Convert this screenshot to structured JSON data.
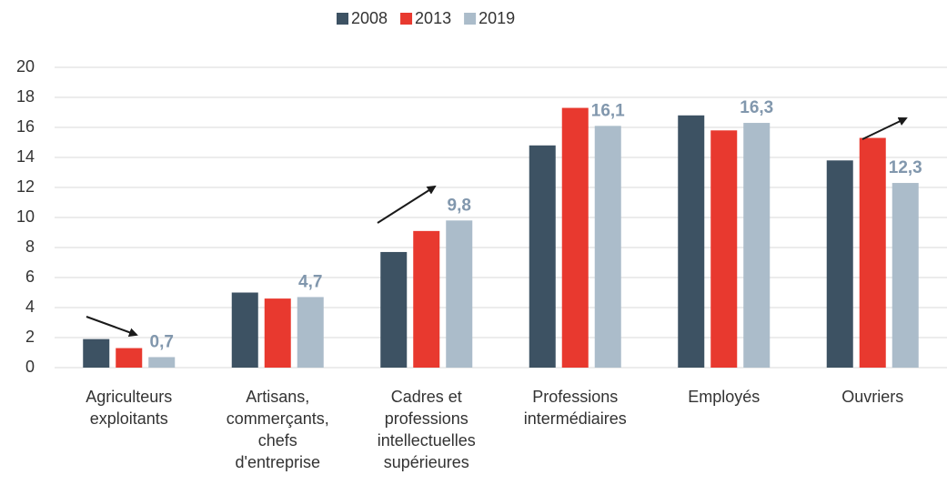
{
  "chart_data": {
    "type": "bar",
    "categories": [
      "Agriculteurs\nexploitants",
      "Artisans,\ncommerçants,\nchefs\nd'entreprise",
      "Cadres et\nprofessions\nintellectuelles\nsupérieures",
      "Professions\nintermédiaires",
      "Employés",
      "Ouvriers"
    ],
    "series": [
      {
        "name": "2008",
        "color": "#3d5263",
        "values": [
          1.9,
          5.0,
          7.7,
          14.8,
          16.8,
          13.8
        ]
      },
      {
        "name": "2013",
        "color": "#e8392f",
        "values": [
          1.3,
          4.6,
          9.1,
          17.3,
          15.8,
          15.3
        ]
      },
      {
        "name": "2019",
        "color": "#abbcca",
        "values": [
          0.7,
          4.7,
          9.8,
          16.1,
          16.3,
          12.3
        ],
        "value_labels": [
          "0,7",
          "4,7",
          "9,8",
          "16,1",
          "16,3",
          "12,3"
        ]
      }
    ],
    "ylim": [
      0,
      20
    ],
    "yticks": [
      0,
      2,
      4,
      6,
      8,
      10,
      12,
      14,
      16,
      18,
      20
    ],
    "grid": true,
    "legend": "top"
  }
}
